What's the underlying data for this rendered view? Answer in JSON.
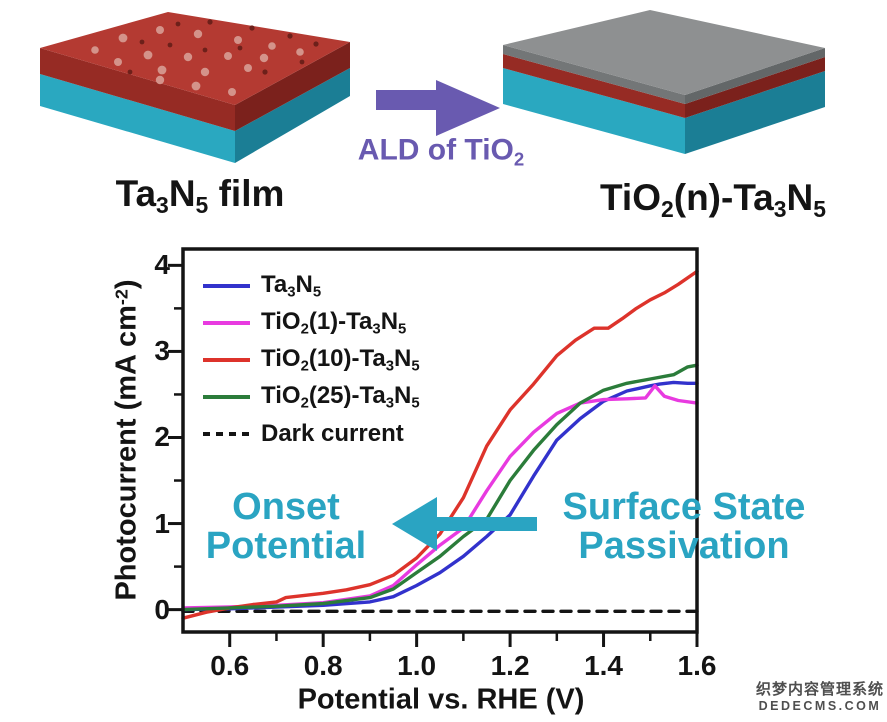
{
  "diagram": {
    "left_label_rich": [
      [
        "Ta"
      ],
      [
        "3",
        "sub"
      ],
      [
        "N"
      ],
      [
        "5",
        "sub"
      ],
      [
        " film"
      ]
    ],
    "arrow_label_rich": [
      [
        "ALD of TiO"
      ],
      [
        "2",
        "sub"
      ]
    ],
    "right_label_rich": [
      [
        "TiO"
      ],
      [
        "2",
        "sub"
      ],
      [
        "(n)-Ta"
      ],
      [
        "3",
        "sub"
      ],
      [
        "N"
      ],
      [
        "5",
        "sub"
      ]
    ],
    "colors": {
      "slab_red_top": "#b43a32",
      "slab_red_front": "#962b24",
      "slab_red_side": "#7b211c",
      "slab_teal_front": "#2aa8c0",
      "slab_teal_side": "#1b7e95",
      "slab_gray_top": "#8e9091",
      "slab_gray_front": "#737677",
      "slab_gray_side": "#636768",
      "dot_light": "#d4938a",
      "dot_dark": "#6d201a",
      "arrow": "#695ab0"
    }
  },
  "chart_data": {
    "type": "line",
    "title": "",
    "xlabel": "Potential vs. RHE (V)",
    "ylabel_rich": [
      [
        "Photocurrent (mA cm"
      ],
      [
        "-2",
        "sup"
      ],
      [
        ")"
      ]
    ],
    "xlim": [
      0.5,
      1.6
    ],
    "ylim": [
      -0.26,
      4.19
    ],
    "grid": false,
    "legend_position": "upper-left",
    "axis_color": "#141414",
    "xticks": {
      "major": [
        0.6,
        0.8,
        1.0,
        1.2,
        1.4,
        1.6
      ],
      "minor": [
        0.7,
        0.9,
        1.1,
        1.3,
        1.5
      ],
      "labels": [
        "0.6",
        "0.8",
        "1.0",
        "1.2",
        "1.4",
        "1.6"
      ]
    },
    "yticks": {
      "major": [
        0,
        1,
        2,
        3,
        4
      ],
      "minor": [
        0.5,
        1.5,
        2.5,
        3.5
      ],
      "labels": [
        "0",
        "1",
        "2",
        "3",
        "4"
      ]
    },
    "series": [
      {
        "name": "Ta3N5",
        "label_rich": [
          [
            "Ta"
          ],
          [
            "3",
            "sub"
          ],
          [
            "N"
          ],
          [
            "5",
            "sub"
          ]
        ],
        "color": "#3232cc",
        "dash": null,
        "points": [
          [
            0.5,
            0.0
          ],
          [
            0.6,
            0.01
          ],
          [
            0.7,
            0.03
          ],
          [
            0.8,
            0.05
          ],
          [
            0.9,
            0.09
          ],
          [
            0.95,
            0.15
          ],
          [
            1.0,
            0.28
          ],
          [
            1.05,
            0.43
          ],
          [
            1.1,
            0.62
          ],
          [
            1.15,
            0.85
          ],
          [
            1.2,
            1.1
          ],
          [
            1.25,
            1.55
          ],
          [
            1.3,
            1.97
          ],
          [
            1.35,
            2.22
          ],
          [
            1.4,
            2.42
          ],
          [
            1.45,
            2.54
          ],
          [
            1.5,
            2.6
          ],
          [
            1.52,
            2.62
          ],
          [
            1.55,
            2.64
          ],
          [
            1.58,
            2.63
          ],
          [
            1.6,
            2.63
          ]
        ]
      },
      {
        "name": "TiO2(1)-Ta3N5",
        "label_rich": [
          [
            "TiO"
          ],
          [
            "2",
            "sub"
          ],
          [
            "(1)-Ta"
          ],
          [
            "3",
            "sub"
          ],
          [
            "N"
          ],
          [
            "5",
            "sub"
          ]
        ],
        "color": "#e83ae0",
        "dash": null,
        "points": [
          [
            0.5,
            0.02
          ],
          [
            0.6,
            0.03
          ],
          [
            0.7,
            0.05
          ],
          [
            0.8,
            0.08
          ],
          [
            0.9,
            0.16
          ],
          [
            0.95,
            0.28
          ],
          [
            1.0,
            0.52
          ],
          [
            1.05,
            0.75
          ],
          [
            1.1,
            0.95
          ],
          [
            1.15,
            1.38
          ],
          [
            1.2,
            1.78
          ],
          [
            1.25,
            2.06
          ],
          [
            1.3,
            2.28
          ],
          [
            1.35,
            2.4
          ],
          [
            1.4,
            2.44
          ],
          [
            1.45,
            2.45
          ],
          [
            1.49,
            2.46
          ],
          [
            1.51,
            2.6
          ],
          [
            1.53,
            2.48
          ],
          [
            1.56,
            2.43
          ],
          [
            1.6,
            2.4
          ]
        ]
      },
      {
        "name": "TiO2(10)-Ta3N5",
        "label_rich": [
          [
            "TiO"
          ],
          [
            "2",
            "sub"
          ],
          [
            "(10)-Ta"
          ],
          [
            "3",
            "sub"
          ],
          [
            "N"
          ],
          [
            "5",
            "sub"
          ]
        ],
        "color": "#dd332b",
        "dash": null,
        "points": [
          [
            0.5,
            -0.1
          ],
          [
            0.55,
            -0.03
          ],
          [
            0.6,
            0.02
          ],
          [
            0.65,
            0.06
          ],
          [
            0.7,
            0.09
          ],
          [
            0.72,
            0.14
          ],
          [
            0.8,
            0.19
          ],
          [
            0.85,
            0.23
          ],
          [
            0.9,
            0.29
          ],
          [
            0.95,
            0.4
          ],
          [
            1.0,
            0.6
          ],
          [
            1.05,
            0.88
          ],
          [
            1.1,
            1.3
          ],
          [
            1.15,
            1.9
          ],
          [
            1.2,
            2.32
          ],
          [
            1.25,
            2.62
          ],
          [
            1.3,
            2.95
          ],
          [
            1.34,
            3.13
          ],
          [
            1.38,
            3.27
          ],
          [
            1.41,
            3.27
          ],
          [
            1.44,
            3.38
          ],
          [
            1.47,
            3.5
          ],
          [
            1.5,
            3.6
          ],
          [
            1.53,
            3.68
          ],
          [
            1.56,
            3.78
          ],
          [
            1.6,
            3.93
          ]
        ]
      },
      {
        "name": "TiO2(25)-Ta3N5",
        "label_rich": [
          [
            "TiO"
          ],
          [
            "2",
            "sub"
          ],
          [
            "(25)-Ta"
          ],
          [
            "3",
            "sub"
          ],
          [
            "N"
          ],
          [
            "5",
            "sub"
          ]
        ],
        "color": "#2b7c3a",
        "dash": null,
        "points": [
          [
            0.5,
            0.0
          ],
          [
            0.6,
            0.02
          ],
          [
            0.7,
            0.04
          ],
          [
            0.8,
            0.07
          ],
          [
            0.9,
            0.14
          ],
          [
            0.95,
            0.24
          ],
          [
            1.0,
            0.43
          ],
          [
            1.05,
            0.62
          ],
          [
            1.1,
            0.85
          ],
          [
            1.15,
            1.05
          ],
          [
            1.2,
            1.5
          ],
          [
            1.25,
            1.85
          ],
          [
            1.3,
            2.15
          ],
          [
            1.35,
            2.4
          ],
          [
            1.4,
            2.55
          ],
          [
            1.45,
            2.63
          ],
          [
            1.5,
            2.68
          ],
          [
            1.55,
            2.73
          ],
          [
            1.58,
            2.82
          ],
          [
            1.6,
            2.84
          ]
        ]
      },
      {
        "name": "Dark current",
        "label_rich": [
          [
            "Dark current"
          ]
        ],
        "color": "#141414",
        "dash": "10 8",
        "points": [
          [
            0.5,
            -0.02
          ],
          [
            1.6,
            -0.02
          ]
        ]
      }
    ]
  },
  "annotations": {
    "color": "#2aa4c2",
    "onset_line1": "Onset",
    "onset_line2": "Potential",
    "surface_line1": "Surface State",
    "surface_line2": "Passivation"
  },
  "watermark": {
    "line1": "织梦内容管理系统",
    "line2": "DEDECMS.COM"
  }
}
